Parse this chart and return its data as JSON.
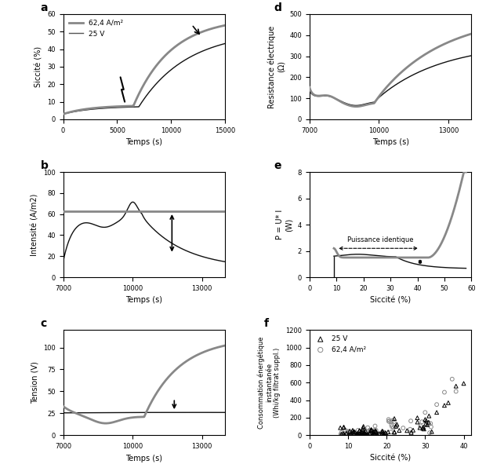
{
  "fig_width": 6.2,
  "fig_height": 5.96,
  "dpi": 100,
  "gray_color": "#888888",
  "black_color": "#111111",
  "gray_lw": 2.0,
  "black_lw": 1.0,
  "panel_a": {
    "label": "a",
    "xlabel": "Temps (s)",
    "ylabel": "Siccité (%)",
    "xlim": [
      0,
      15000
    ],
    "ylim": [
      0,
      60
    ],
    "yticks": [
      0,
      10,
      20,
      30,
      40,
      50,
      60
    ],
    "xticks": [
      0,
      5000,
      10000,
      15000
    ],
    "legend": [
      "62,4 A/m²",
      "25 V"
    ]
  },
  "panel_b": {
    "label": "b",
    "xlabel": "Temps (s)",
    "ylabel": "Intensité (A/m2)",
    "xlim": [
      7000,
      14000
    ],
    "ylim": [
      0,
      100
    ],
    "yticks": [
      0,
      20,
      40,
      60,
      80,
      100
    ],
    "xticks": [
      7000,
      10000,
      13000
    ]
  },
  "panel_c": {
    "label": "c",
    "xlabel": "Temps (s)",
    "ylabel": "Tension (V)",
    "xlim": [
      7000,
      14000
    ],
    "ylim": [
      0,
      120
    ],
    "yticks": [
      0,
      25,
      50,
      75,
      100
    ],
    "xticks": [
      7000,
      10000,
      13000
    ]
  },
  "panel_d": {
    "label": "d",
    "xlabel": "Temps (s)",
    "ylabel": "Resistance électrique\n(Ω)",
    "xlim": [
      7000,
      14000
    ],
    "ylim": [
      0,
      500
    ],
    "yticks": [
      0,
      100,
      200,
      300,
      400,
      500
    ],
    "xticks": [
      7000,
      10000,
      13000
    ]
  },
  "panel_e": {
    "label": "e",
    "xlabel": "Siccité (%)",
    "ylabel": "P = U* I\n(W)",
    "xlim": [
      0,
      60
    ],
    "ylim": [
      0,
      8
    ],
    "yticks": [
      0,
      2,
      4,
      6,
      8
    ],
    "xticks": [
      0,
      10,
      20,
      30,
      40,
      50,
      60
    ],
    "annotation": "Puissance identique"
  },
  "panel_f": {
    "label": "f",
    "xlabel": "Siccité (%)",
    "ylabel": "Consommation énergétique\ninstantanée\n(Whi/kg filtrat suppl.)",
    "xlim": [
      5,
      42
    ],
    "ylim": [
      0,
      1200
    ],
    "yticks": [
      0,
      200,
      400,
      600,
      800,
      1000,
      1200
    ],
    "xticks": [
      0,
      10,
      20,
      30,
      40
    ],
    "legend": [
      "25 V",
      "62,4 A/m²"
    ]
  }
}
